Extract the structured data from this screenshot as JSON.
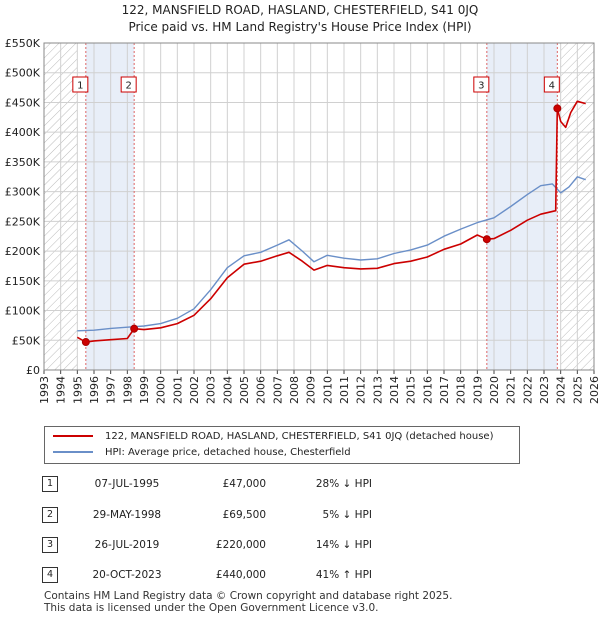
{
  "title_line1": "122, MANSFIELD ROAD, HASLAND, CHESTERFIELD, S41 0JQ",
  "title_line2": "Price paid vs. HM Land Registry's House Price Index (HPI)",
  "chart_data": {
    "type": "line",
    "title": "122, MANSFIELD ROAD, HASLAND, CHESTERFIELD, S41 0JQ",
    "subtitle": "Price paid vs. HM Land Registry's House Price Index (HPI)",
    "xlabel": "",
    "ylabel": "",
    "xlim": [
      1993,
      2026
    ],
    "ylim": [
      0,
      550000
    ],
    "grid": true,
    "yticks": [
      0,
      50000,
      100000,
      150000,
      200000,
      250000,
      300000,
      350000,
      400000,
      450000,
      500000,
      550000
    ],
    "ytick_labels": [
      "£0",
      "£50K",
      "£100K",
      "£150K",
      "£200K",
      "£250K",
      "£300K",
      "£350K",
      "£400K",
      "£450K",
      "£500K",
      "£550K"
    ],
    "xticks": [
      1993,
      1994,
      1995,
      1996,
      1997,
      1998,
      1999,
      2000,
      2001,
      2002,
      2003,
      2004,
      2005,
      2006,
      2007,
      2008,
      2009,
      2010,
      2011,
      2012,
      2013,
      2014,
      2015,
      2016,
      2017,
      2018,
      2019,
      2020,
      2021,
      2022,
      2023,
      2024,
      2025,
      2026
    ],
    "hatched_ranges": [
      [
        1993,
        1995
      ],
      [
        2024,
        2026
      ]
    ],
    "shaded_ranges": [
      [
        1995.51,
        1998.41
      ],
      [
        2019.57,
        2023.8
      ]
    ],
    "series": [
      {
        "name": "122, MANSFIELD ROAD, HASLAND, CHESTERFIELD, S41 0JQ (detached house)",
        "color": "#cc0000",
        "x": [
          1995.0,
          1995.51,
          1996.0,
          1997.0,
          1998.0,
          1998.41,
          1999.0,
          2000.0,
          2001.0,
          2002.0,
          2003.0,
          2004.0,
          2005.0,
          2006.0,
          2007.0,
          2007.7,
          2008.5,
          2009.2,
          2010.0,
          2011.0,
          2012.0,
          2013.0,
          2014.0,
          2015.0,
          2016.0,
          2017.0,
          2018.0,
          2019.0,
          2019.57,
          2020.0,
          2021.0,
          2022.0,
          2022.8,
          2023.7,
          2023.8,
          2024.0,
          2024.3,
          2024.6,
          2025.0,
          2025.5
        ],
        "values": [
          55000,
          47000,
          49000,
          51000,
          53000,
          69500,
          68000,
          71000,
          78000,
          92000,
          120000,
          155000,
          178000,
          183000,
          192000,
          198000,
          183000,
          168000,
          176000,
          172000,
          170000,
          171000,
          179000,
          183000,
          190000,
          203000,
          212000,
          227000,
          220000,
          221000,
          235000,
          252000,
          262000,
          268000,
          440000,
          418000,
          408000,
          433000,
          452000,
          448000
        ]
      },
      {
        "name": "HPI: Average price, detached house, Chesterfield",
        "color": "#6a8fc8",
        "x": [
          1995.0,
          1996.0,
          1997.0,
          1998.0,
          1999.0,
          2000.0,
          2001.0,
          2002.0,
          2003.0,
          2004.0,
          2005.0,
          2006.0,
          2007.0,
          2007.7,
          2008.5,
          2009.2,
          2010.0,
          2011.0,
          2012.0,
          2013.0,
          2014.0,
          2015.0,
          2016.0,
          2017.0,
          2018.0,
          2019.0,
          2020.0,
          2021.0,
          2022.0,
          2022.8,
          2023.5,
          2024.0,
          2024.5,
          2025.0,
          2025.5
        ],
        "values": [
          66000,
          67000,
          70000,
          72000,
          74000,
          78000,
          87000,
          103000,
          135000,
          172000,
          192000,
          198000,
          210000,
          219000,
          200000,
          182000,
          193000,
          188000,
          185000,
          187000,
          196000,
          202000,
          210000,
          225000,
          237000,
          248000,
          256000,
          275000,
          295000,
          310000,
          313000,
          298000,
          308000,
          325000,
          320000
        ]
      }
    ],
    "markers": [
      {
        "label": "1",
        "x": 1995.51,
        "y": 47000
      },
      {
        "label": "2",
        "x": 1998.41,
        "y": 69500
      },
      {
        "label": "3",
        "x": 2019.57,
        "y": 220000
      },
      {
        "label": "4",
        "x": 2023.8,
        "y": 440000
      }
    ]
  },
  "legend": {
    "property_label": "122, MANSFIELD ROAD, HASLAND, CHESTERFIELD, S41 0JQ (detached house)",
    "hpi_label": "HPI: Average price, detached house, Chesterfield"
  },
  "sales": [
    {
      "num": "1",
      "date": "07-JUL-1995",
      "price": "£47,000",
      "hpi": "28% ↓ HPI"
    },
    {
      "num": "2",
      "date": "29-MAY-1998",
      "price": "£69,500",
      "hpi": "5% ↓ HPI"
    },
    {
      "num": "3",
      "date": "26-JUL-2019",
      "price": "£220,000",
      "hpi": "14% ↓ HPI"
    },
    {
      "num": "4",
      "date": "20-OCT-2023",
      "price": "£440,000",
      "hpi": "41% ↑ HPI"
    }
  ],
  "footer_line1": "Contains HM Land Registry data © Crown copyright and database right 2025.",
  "footer_line2": "This data is licensed under the Open Government Licence v3.0."
}
